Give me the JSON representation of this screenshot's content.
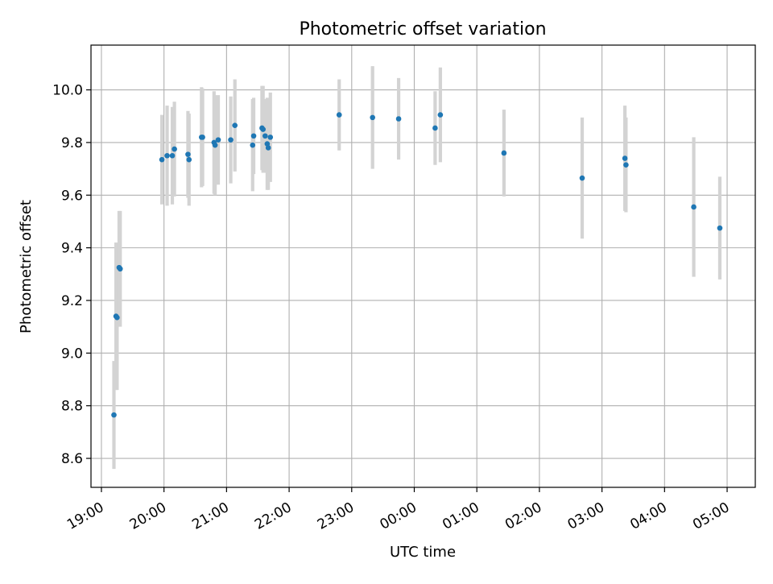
{
  "chart_data": {
    "type": "scatter",
    "title": "Photometric offset variation",
    "xlabel": "UTC time",
    "ylabel": "Photometric offset",
    "x_tick_labels": [
      "19:00",
      "20:00",
      "21:00",
      "22:00",
      "23:00",
      "00:00",
      "01:00",
      "02:00",
      "03:00",
      "04:00",
      "05:00"
    ],
    "y_tick_labels": [
      "8.6",
      "8.8",
      "9.0",
      "9.2",
      "9.4",
      "9.6",
      "9.8",
      "10.0"
    ],
    "y_ticks": [
      8.6,
      8.8,
      9.0,
      9.2,
      9.4,
      9.6,
      9.8,
      10.0
    ],
    "xlim": [
      "18:50",
      "05:27"
    ],
    "ylim": [
      8.49,
      10.17
    ],
    "grid": true,
    "series": [
      {
        "marker_color": "#1f77b4",
        "errorbar_color": "#d3d3d3",
        "points": [
          {
            "time": "19:12",
            "y": 8.765,
            "err": 0.205
          },
          {
            "time": "19:14",
            "y": 9.14,
            "err": 0.28
          },
          {
            "time": "19:15",
            "y": 9.135,
            "err": 0.275
          },
          {
            "time": "19:17",
            "y": 9.325,
            "err": 0.215
          },
          {
            "time": "19:18",
            "y": 9.32,
            "err": 0.22
          },
          {
            "time": "19:58",
            "y": 9.735,
            "err": 0.17
          },
          {
            "time": "20:03",
            "y": 9.75,
            "err": 0.19
          },
          {
            "time": "20:08",
            "y": 9.75,
            "err": 0.185
          },
          {
            "time": "20:10",
            "y": 9.775,
            "err": 0.18
          },
          {
            "time": "20:23",
            "y": 9.755,
            "err": 0.165
          },
          {
            "time": "20:24",
            "y": 9.735,
            "err": 0.175
          },
          {
            "time": "20:36",
            "y": 9.82,
            "err": 0.19
          },
          {
            "time": "20:37",
            "y": 9.82,
            "err": 0.185
          },
          {
            "time": "20:48",
            "y": 9.8,
            "err": 0.195
          },
          {
            "time": "20:49",
            "y": 9.79,
            "err": 0.19
          },
          {
            "time": "20:52",
            "y": 9.81,
            "err": 0.17
          },
          {
            "time": "21:04",
            "y": 9.81,
            "err": 0.165
          },
          {
            "time": "21:08",
            "y": 9.865,
            "err": 0.175
          },
          {
            "time": "21:25",
            "y": 9.79,
            "err": 0.175
          },
          {
            "time": "21:26",
            "y": 9.825,
            "err": 0.145
          },
          {
            "time": "21:34",
            "y": 9.855,
            "err": 0.16
          },
          {
            "time": "21:35",
            "y": 9.85,
            "err": 0.165
          },
          {
            "time": "21:37",
            "y": 9.825,
            "err": 0.14
          },
          {
            "time": "21:39",
            "y": 9.795,
            "err": 0.175
          },
          {
            "time": "21:40",
            "y": 9.78,
            "err": 0.16
          },
          {
            "time": "21:42",
            "y": 9.82,
            "err": 0.17
          },
          {
            "time": "22:48",
            "y": 9.905,
            "err": 0.135
          },
          {
            "time": "23:20",
            "y": 9.895,
            "err": 0.195
          },
          {
            "time": "23:45",
            "y": 9.89,
            "err": 0.155
          },
          {
            "time": "00:20",
            "y": 9.855,
            "err": 0.14
          },
          {
            "time": "00:25",
            "y": 9.905,
            "err": 0.18
          },
          {
            "time": "01:26",
            "y": 9.76,
            "err": 0.165
          },
          {
            "time": "02:41",
            "y": 9.665,
            "err": 0.23
          },
          {
            "time": "03:22",
            "y": 9.74,
            "err": 0.2
          },
          {
            "time": "03:23",
            "y": 9.715,
            "err": 0.18
          },
          {
            "time": "04:28",
            "y": 9.555,
            "err": 0.265
          },
          {
            "time": "04:53",
            "y": 9.475,
            "err": 0.195
          }
        ]
      }
    ]
  }
}
